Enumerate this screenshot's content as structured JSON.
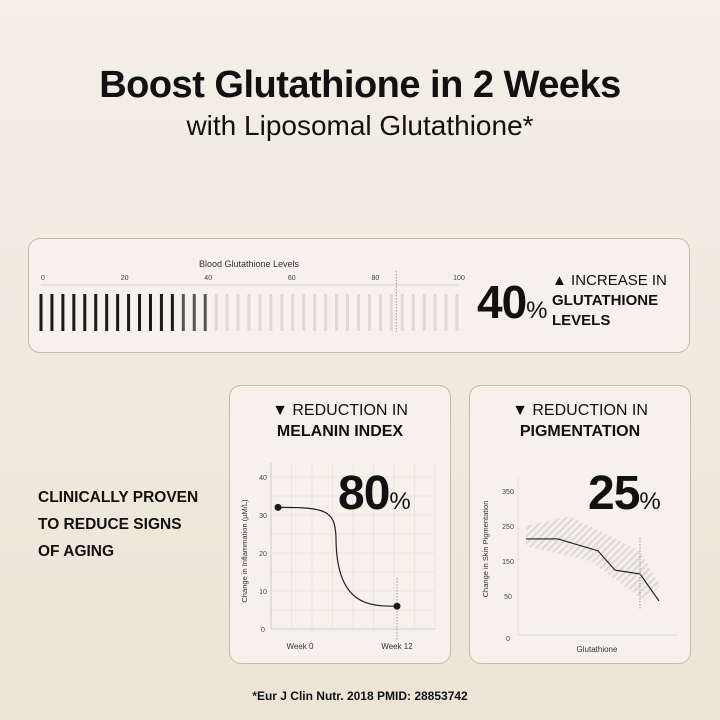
{
  "header": {
    "title": "Boost Glutathione in 2 Weeks",
    "subtitle": "with Liposomal Glutathione*"
  },
  "glutathione_card": {
    "number": "40",
    "percent": "%",
    "arrow": "▲",
    "line1": "INCREASE IN",
    "line2": "GLUTATHIONE",
    "line3": "LEVELS"
  },
  "melanin_card": {
    "arrow": "▼",
    "line1": "REDUCTION IN",
    "line2": "MELANIN INDEX",
    "number": "80",
    "percent": "%"
  },
  "pigmentation_card": {
    "arrow": "▼",
    "line1": "REDUCTION IN",
    "line2": "PIGMENTATION",
    "number": "25",
    "percent": "%"
  },
  "claim": {
    "line1": "CLINICALLY PROVEN",
    "line2": "TO REDUCE SIGNS",
    "line3": "OF AGING"
  },
  "footnote": "*Eur J Clin Nutr. 2018 PMID: 28853742",
  "colors": {
    "dark": "#1a1a1a",
    "light_bar": "#dedad3",
    "card": "#f6f2eb",
    "border": "#c6bcae"
  },
  "chart_data": [
    {
      "type": "bar",
      "title": "Blood Glutathione Levels",
      "xlim": [
        0,
        100
      ],
      "ticks": [
        "0",
        "20",
        "40",
        "60",
        "80",
        "100"
      ],
      "filled_value": 40,
      "marker_value": 85,
      "total_bars": 39,
      "filled_bars": 16
    },
    {
      "type": "line",
      "ylabel": "Change in Inflammation (µM/L)",
      "categories": [
        "Week 0",
        "Week 12"
      ],
      "values": [
        32,
        6
      ],
      "ylim": [
        0,
        40
      ],
      "yticks": [
        "0",
        "10",
        "20",
        "30",
        "40"
      ],
      "grid": true,
      "marker_at": "Week 12"
    },
    {
      "type": "line",
      "ylabel": "Change in Skin Pigmentation",
      "xlabel": "Glutathione",
      "values": [
        213,
        213,
        179,
        124,
        113,
        36
      ],
      "ylim": [
        0,
        350
      ],
      "yticks": [
        "0",
        "50",
        "150",
        "250",
        "350"
      ],
      "grid": false,
      "shaded_band": true
    }
  ]
}
